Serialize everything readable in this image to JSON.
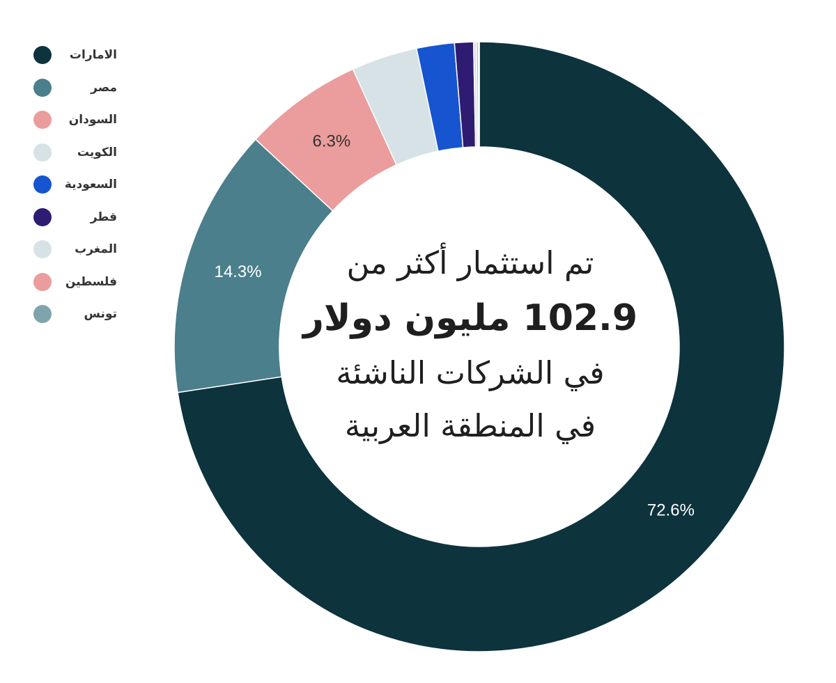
{
  "chart_data": {
    "type": "pie",
    "donut": true,
    "categories": [
      "الامارات",
      "مصر",
      "السودان",
      "الكويت",
      "السعودية",
      "قطر",
      "المغرب",
      "فلسطين",
      "تونس"
    ],
    "values": [
      72.6,
      14.3,
      6.3,
      3.5,
      2.0,
      1.0,
      0.15,
      0.1,
      0.05
    ],
    "colors": [
      "#0d333d",
      "#4a7f8b",
      "#eb9c9c",
      "#d6e2e6",
      "#1755d0",
      "#2f1b72",
      "#d6e2e6",
      "#eb9c9c",
      "#7fa4ae"
    ],
    "data_labels": [
      "72.6%",
      "14.3%",
      "6.3%",
      "",
      "",
      "",
      "",
      "",
      ""
    ],
    "label_colors": [
      "#ffffff",
      "#ffffff",
      "#333333",
      "#333333",
      "#ffffff",
      "#ffffff",
      "#333333",
      "#333333",
      "#ffffff"
    ],
    "legend_position": "left",
    "center_text": {
      "line1": "تم استثمار أكثر من",
      "line2": "102.9 مليون دولار",
      "line3": "في الشركات الناشئة",
      "line4": "في المنطقة العربية"
    }
  }
}
